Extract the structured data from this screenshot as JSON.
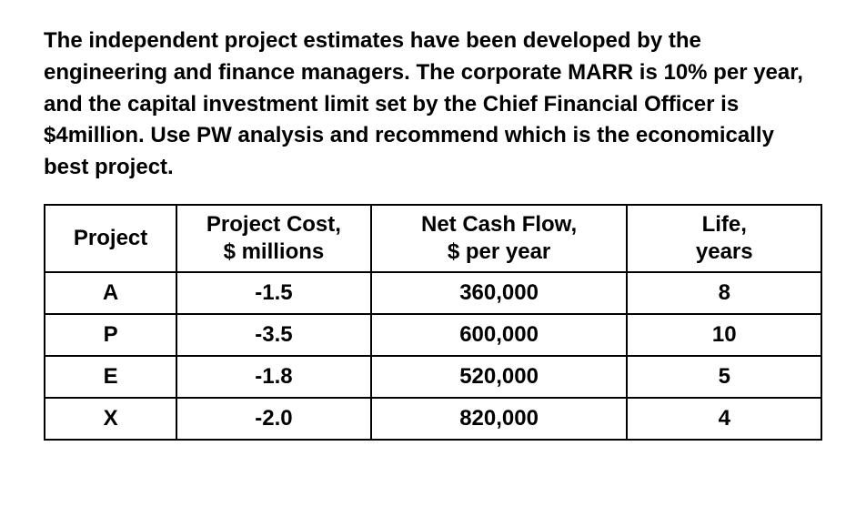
{
  "prompt": "The independent project estimates have been developed by the engineering and finance managers.  The corporate MARR is 10% per year, and the capital investment limit set by the Chief Financial Officer is $4million.  Use PW analysis and recommend which is the economically best project.",
  "table": {
    "columns": [
      {
        "line1": "Project",
        "line2": "",
        "width_pct": 17,
        "align": "center"
      },
      {
        "line1": "Project Cost,",
        "line2": "$ millions",
        "width_pct": 25,
        "align": "center"
      },
      {
        "line1": "Net Cash Flow,",
        "line2": "$ per year",
        "width_pct": 33,
        "align": "center"
      },
      {
        "line1": "Life,",
        "line2": "years",
        "width_pct": 25,
        "align": "center"
      }
    ],
    "rows": [
      {
        "project": "A",
        "cost": "-1.5",
        "ncf": "360,000",
        "life": "8"
      },
      {
        "project": "P",
        "cost": "-3.5",
        "ncf": "600,000",
        "life": "10"
      },
      {
        "project": "E",
        "cost": "-1.8",
        "ncf": "520,000",
        "life": "5"
      },
      {
        "project": "X",
        "cost": "-2.0",
        "ncf": "820,000",
        "life": "4"
      }
    ],
    "border_color": "#000000",
    "text_color": "#000000",
    "font_size_pt": 18,
    "font_weight": "bold"
  },
  "background_color": "#ffffff"
}
